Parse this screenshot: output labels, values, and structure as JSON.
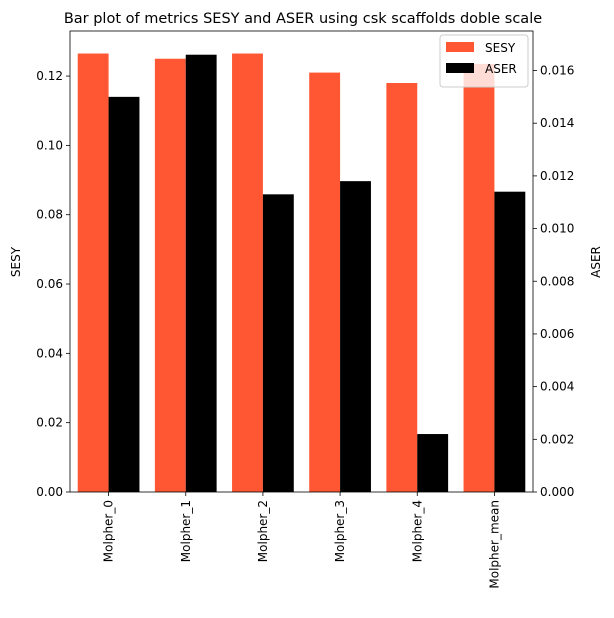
{
  "chart_data": {
    "type": "bar",
    "title": "Bar plot of metrics SESY and ASER using csk scaffolds doble scale",
    "categories": [
      "Molpher_0",
      "Molpher_1",
      "Molpher_2",
      "Molpher_3",
      "Molpher_4",
      "Molpher_mean"
    ],
    "series": [
      {
        "name": "SESY",
        "axis": "left",
        "color": "#ff5733",
        "values": [
          0.1265,
          0.125,
          0.1265,
          0.121,
          0.118,
          0.1235
        ]
      },
      {
        "name": "ASER",
        "axis": "right",
        "color": "#000000",
        "values": [
          0.015,
          0.0166,
          0.0113,
          0.0118,
          0.0022,
          0.0114
        ]
      }
    ],
    "ylabel": "SESY",
    "y2label": "ASER",
    "xlabel": "",
    "ylim": [
      0,
      0.133
    ],
    "y2lim": [
      0,
      0.0175
    ],
    "yticks": [
      "0.00",
      "0.02",
      "0.04",
      "0.06",
      "0.08",
      "0.10",
      "0.12"
    ],
    "y2ticks": [
      "0.000",
      "0.002",
      "0.004",
      "0.006",
      "0.008",
      "0.010",
      "0.012",
      "0.014",
      "0.016"
    ],
    "grid": false,
    "legend_position": "top-right"
  }
}
